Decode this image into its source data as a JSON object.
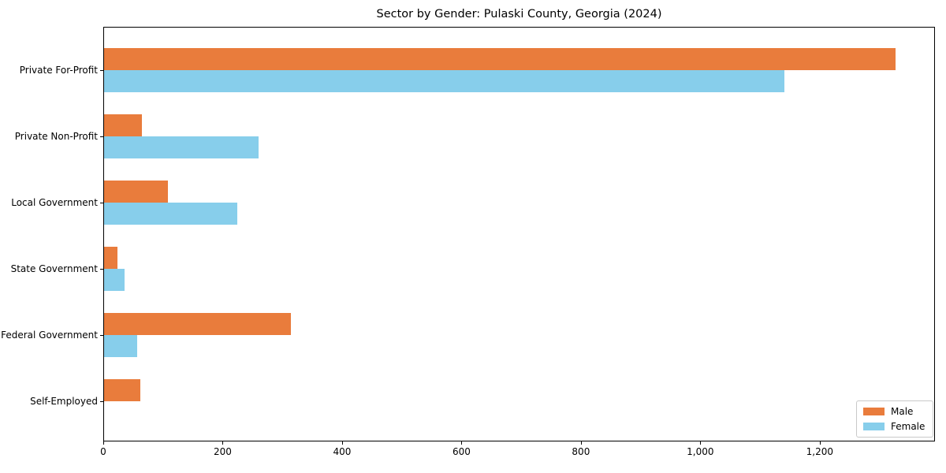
{
  "chart_data": {
    "type": "bar",
    "orientation": "horizontal",
    "title": "Sector by Gender: Pulaski County, Georgia (2024)",
    "categories": [
      "Private For-Profit",
      "Private Non-Profit",
      "Local Government",
      "State Government",
      "Federal Government",
      "Self-Employed"
    ],
    "series": [
      {
        "name": "Male",
        "color": "#e97c3c",
        "values": [
          1327,
          65,
          108,
          24,
          314,
          62
        ]
      },
      {
        "name": "Female",
        "color": "#87ceeb",
        "values": [
          1141,
          260,
          224,
          35,
          57,
          0
        ]
      }
    ],
    "xlabel": "",
    "ylabel": "",
    "xlim": [
      0,
      1393
    ],
    "x_ticks": [
      0,
      200,
      400,
      600,
      800,
      1000,
      1200
    ],
    "x_tick_labels": [
      "0",
      "200",
      "400",
      "600",
      "800",
      "1,000",
      "1,200"
    ],
    "grid": false,
    "legend_position": "lower right"
  }
}
